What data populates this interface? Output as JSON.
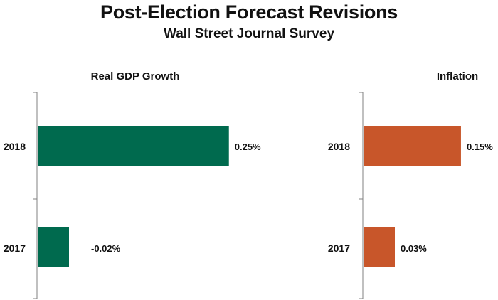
{
  "title": "Post-Election Forecast Revisions",
  "subtitle": "Wall Street Journal Survey",
  "chart_data": [
    {
      "type": "bar",
      "orientation": "horizontal",
      "title": "Real GDP Growth",
      "categories": [
        "2018",
        "2017"
      ],
      "values": [
        0.25,
        -0.02
      ],
      "value_labels": [
        "0.25%",
        "-0.02%"
      ],
      "color": "#006A4E",
      "grid": false
    },
    {
      "type": "bar",
      "orientation": "horizontal",
      "title": "Inflation",
      "categories": [
        "2018",
        "2017"
      ],
      "values": [
        0.15,
        0.03
      ],
      "value_labels": [
        "0.15%",
        "0.03%"
      ],
      "color": "#C8562A",
      "grid": false
    }
  ]
}
